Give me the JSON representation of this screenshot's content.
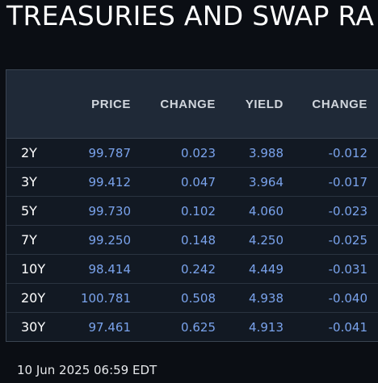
{
  "title": "TREASURIES AND SWAP RA",
  "table": {
    "headers": [
      "",
      "PRICE",
      "CHANGE",
      "YIELD",
      "CHANGE"
    ],
    "rows": [
      {
        "tenor": "2Y",
        "price": "99.787",
        "price_change": "0.023",
        "yield": "3.988",
        "yield_change": "-0.012"
      },
      {
        "tenor": "3Y",
        "price": "99.412",
        "price_change": "0.047",
        "yield": "3.964",
        "yield_change": "-0.017"
      },
      {
        "tenor": "5Y",
        "price": "99.730",
        "price_change": "0.102",
        "yield": "4.060",
        "yield_change": "-0.023"
      },
      {
        "tenor": "7Y",
        "price": "99.250",
        "price_change": "0.148",
        "yield": "4.250",
        "yield_change": "-0.025"
      },
      {
        "tenor": "10Y",
        "price": "98.414",
        "price_change": "0.242",
        "yield": "4.449",
        "yield_change": "-0.031"
      },
      {
        "tenor": "20Y",
        "price": "100.781",
        "price_change": "0.508",
        "yield": "4.938",
        "yield_change": "-0.040"
      },
      {
        "tenor": "30Y",
        "price": "97.461",
        "price_change": "0.625",
        "yield": "4.913",
        "yield_change": "-0.041"
      }
    ]
  },
  "timestamp": "10 Jun 2025 06:59 EDT",
  "colors": {
    "background": "#0b0e14",
    "header_bg": "#1f2937",
    "value_text": "#7aa3ec",
    "tenor_text": "#ffffff"
  }
}
